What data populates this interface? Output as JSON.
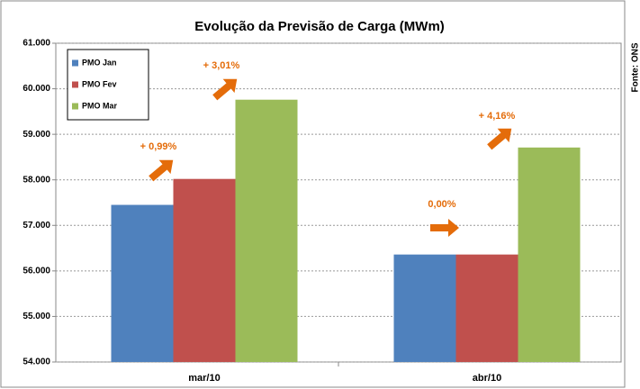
{
  "chart_data": {
    "type": "bar",
    "title": "Evolução da Previsão de Carga (MWm)",
    "categories": [
      "mar/10",
      "abr/10"
    ],
    "series": [
      {
        "name": "PMO Jan",
        "color": "#4f81bd",
        "values": [
          57450,
          56360
        ]
      },
      {
        "name": "PMO Fev",
        "color": "#c0504d",
        "values": [
          58020,
          56360
        ]
      },
      {
        "name": "PMO Mar",
        "color": "#9bbb59",
        "values": [
          59760,
          58710
        ]
      }
    ],
    "ylim": [
      54000,
      61000
    ],
    "yticks": [
      {
        "value": 54000,
        "label": "54.000"
      },
      {
        "value": 55000,
        "label": "55.000"
      },
      {
        "value": 56000,
        "label": "56.000"
      },
      {
        "value": 57000,
        "label": "57.000"
      },
      {
        "value": 58000,
        "label": "58.000"
      },
      {
        "value": 59000,
        "label": "59.000"
      },
      {
        "value": 60000,
        "label": "60.000"
      },
      {
        "value": 61000,
        "label": "61.000"
      }
    ],
    "grid": true,
    "legend": "top-left",
    "annotations": [
      "+ 0,99%",
      "+ 3,01%",
      "0,00%",
      "+ 4,16%"
    ],
    "source": "Fonte: ONS"
  }
}
